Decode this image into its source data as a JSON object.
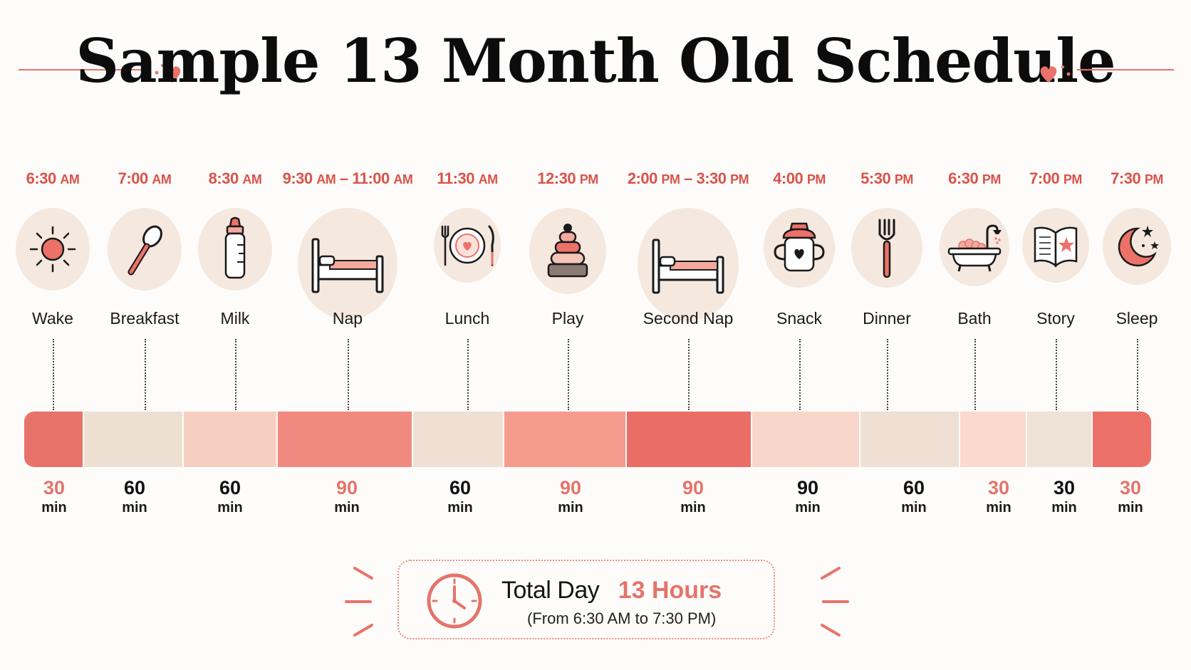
{
  "title": "Sample 13 Month Old Schedule",
  "colors": {
    "accent": "#e4746a",
    "time_text": "#d9534a",
    "icon_bg": "#f4e8df",
    "dark": "#111111"
  },
  "activities": [
    {
      "time": "6:30",
      "ampm": "AM",
      "label": "Wake",
      "icon": "sun-icon"
    },
    {
      "time": "7:00",
      "ampm": "AM",
      "label": "Breakfast",
      "icon": "spoon-icon"
    },
    {
      "time": "8:30",
      "ampm": "AM",
      "label": "Milk",
      "icon": "bottle-icon"
    },
    {
      "time": "9:30",
      "ampm": "AM",
      "time2": "11:00",
      "ampm2": "AM",
      "label": "Nap",
      "icon": "bed-icon"
    },
    {
      "time": "11:30",
      "ampm": "AM",
      "label": "Lunch",
      "icon": "plate-icon"
    },
    {
      "time": "12:30",
      "ampm": "PM",
      "label": "Play",
      "icon": "stacking-toy-icon"
    },
    {
      "time": "2:00",
      "ampm": "PM",
      "time2": "3:30",
      "ampm2": "PM",
      "label": "Second Nap",
      "icon": "bed-icon"
    },
    {
      "time": "4:00",
      "ampm": "PM",
      "label": "Snack",
      "icon": "sippy-cup-icon"
    },
    {
      "time": "5:30",
      "ampm": "PM",
      "label": "Dinner",
      "icon": "fork-icon"
    },
    {
      "time": "6:30",
      "ampm": "PM",
      "label": "Bath",
      "icon": "bathtub-icon"
    },
    {
      "time": "7:00",
      "ampm": "PM",
      "label": "Story",
      "icon": "book-icon"
    },
    {
      "time": "7:30",
      "ampm": "PM",
      "label": "Sleep",
      "icon": "moon-icon"
    }
  ],
  "durations": [
    {
      "value": "30",
      "unit": "min",
      "color": "#e4746a"
    },
    {
      "value": "60",
      "unit": "min",
      "color": "#111111"
    },
    {
      "value": "60",
      "unit": "min",
      "color": "#111111"
    },
    {
      "value": "90",
      "unit": "min",
      "color": "#e4746a"
    },
    {
      "value": "60",
      "unit": "min",
      "color": "#111111"
    },
    {
      "value": "90",
      "unit": "min",
      "color": "#e4746a"
    },
    {
      "value": "90",
      "unit": "min",
      "color": "#e4746a"
    },
    {
      "value": "90",
      "unit": "min",
      "color": "#111111"
    },
    {
      "value": "60",
      "unit": "min",
      "color": "#111111"
    },
    {
      "value": "30",
      "unit": "min",
      "color": "#e4746a"
    },
    {
      "value": "30",
      "unit": "min",
      "color": "#111111"
    },
    {
      "value": "30",
      "unit": "min",
      "color": "#e4746a"
    }
  ],
  "bar_segments": [
    {
      "color": "#e8736b"
    },
    {
      "color": "#ede0d2"
    },
    {
      "color": "#f7cfc0"
    },
    {
      "color": "#f08a7e"
    },
    {
      "color": "#efe0d3"
    },
    {
      "color": "#f49b8d"
    },
    {
      "color": "#eb6e66"
    },
    {
      "color": "#f9d6ca"
    },
    {
      "color": "#efe0d3"
    },
    {
      "color": "#fbd9ce"
    },
    {
      "color": "#efe2d6"
    },
    {
      "color": "#ec7269"
    }
  ],
  "total": {
    "label": "Total Day",
    "value": "13 Hours",
    "subtitle": "(From 6:30 AM to 7:30 PM)"
  }
}
